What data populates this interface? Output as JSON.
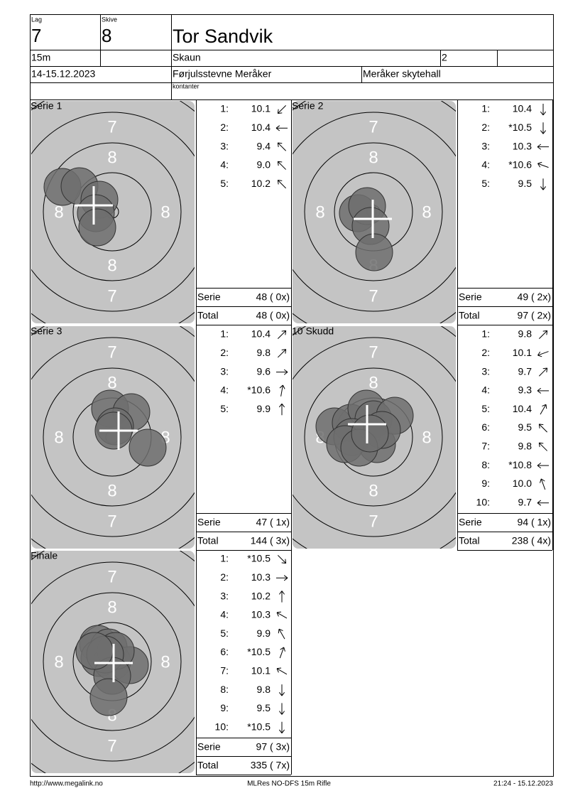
{
  "header": {
    "lag_label": "Lag",
    "lag": "7",
    "skive_label": "Skive",
    "skive": "8",
    "name": "Tor Sandvik",
    "distance": "15m",
    "club": "Skaun",
    "field": "2",
    "date": "14-15.12.2023",
    "event": "Førjulsstevne Meråker",
    "venue": "Meråker skytehall",
    "note": "kontanter"
  },
  "target": {
    "ring_7": "7",
    "ring_8": "8"
  },
  "panels": [
    {
      "title": "Serie 1",
      "shots": [
        {
          "n": "1:",
          "score": "10.1"
        },
        {
          "n": "2:",
          "score": "10.4"
        },
        {
          "n": "3:",
          "score": "9.4"
        },
        {
          "n": "4:",
          "score": "9.0"
        },
        {
          "n": "5:",
          "score": "10.2"
        }
      ],
      "serie_label": "Serie",
      "serie": "48 ( 0x)",
      "total_label": "Total",
      "total": "48 ( 0x)"
    },
    {
      "title": "Serie 2",
      "shots": [
        {
          "n": "1:",
          "score": "10.4"
        },
        {
          "n": "2:",
          "score": "*10.5"
        },
        {
          "n": "3:",
          "score": "10.3"
        },
        {
          "n": "4:",
          "score": "*10.6"
        },
        {
          "n": "5:",
          "score": "9.5"
        }
      ],
      "serie_label": "Serie",
      "serie": "49 ( 2x)",
      "total_label": "Total",
      "total": "97 ( 2x)"
    },
    {
      "title": "Serie 3",
      "shots": [
        {
          "n": "1:",
          "score": "10.4"
        },
        {
          "n": "2:",
          "score": "9.8"
        },
        {
          "n": "3:",
          "score": "9.6"
        },
        {
          "n": "4:",
          "score": "*10.6"
        },
        {
          "n": "5:",
          "score": "9.9"
        }
      ],
      "serie_label": "Serie",
      "serie": "47 ( 1x)",
      "total_label": "Total",
      "total": "144 ( 3x)"
    },
    {
      "title": "10 Skudd",
      "shots": [
        {
          "n": "1:",
          "score": "9.8"
        },
        {
          "n": "2:",
          "score": "10.1"
        },
        {
          "n": "3:",
          "score": "9.7"
        },
        {
          "n": "4:",
          "score": "9.3"
        },
        {
          "n": "5:",
          "score": "10.4"
        },
        {
          "n": "6:",
          "score": "9.5"
        },
        {
          "n": "7:",
          "score": "9.8"
        },
        {
          "n": "8:",
          "score": "*10.8"
        },
        {
          "n": "9:",
          "score": "10.0"
        },
        {
          "n": "10:",
          "score": "9.7"
        }
      ],
      "serie_label": "Serie",
      "serie": "94 ( 1x)",
      "total_label": "Total",
      "total": "238 ( 4x)"
    },
    {
      "title": "Finale",
      "shots": [
        {
          "n": "1:",
          "score": "*10.5"
        },
        {
          "n": "2:",
          "score": "10.3"
        },
        {
          "n": "3:",
          "score": "10.2"
        },
        {
          "n": "4:",
          "score": "10.3"
        },
        {
          "n": "5:",
          "score": "9.9"
        },
        {
          "n": "6:",
          "score": "*10.5"
        },
        {
          "n": "7:",
          "score": "10.1"
        },
        {
          "n": "8:",
          "score": "9.8"
        },
        {
          "n": "9:",
          "score": "9.5"
        },
        {
          "n": "10:",
          "score": "*10.5"
        }
      ],
      "serie_label": "Serie",
      "serie": "97 ( 3x)",
      "total_label": "Total",
      "total": "335 ( 7x)"
    }
  ],
  "footer": {
    "url": "http://www.megalink.no",
    "software": "MLRes NO-DFS 15m Rifle",
    "timestamp": "21:24 - 15.12.2023"
  }
}
